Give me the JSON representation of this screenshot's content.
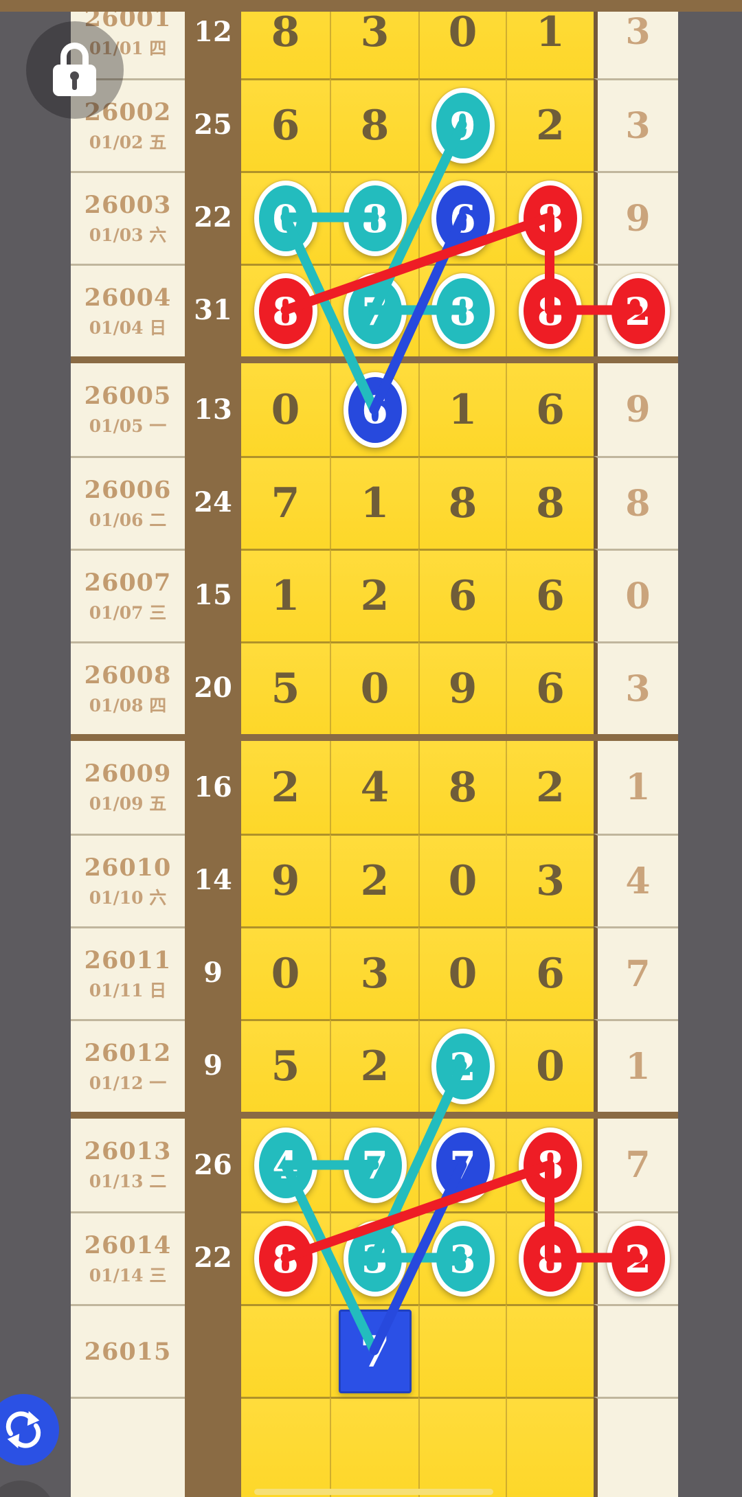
{
  "colors": {
    "teal": "#23bcbe",
    "blue": "#2749dd",
    "red": "#ee1d25",
    "yellow": "#fdd729",
    "brown": "#8a6b44",
    "cream": "#f7f2e0",
    "background": "#5d5b5f",
    "grid_digit": "#6f5d39",
    "tail_digit": "#caa47c",
    "period_text": "#c29b6f",
    "sum_text": "#ffffff"
  },
  "icons": {
    "lock": "lock-icon",
    "refresh": "refresh-icon"
  },
  "table": {
    "rows": [
      {
        "period": "26001",
        "date": "01/01 四",
        "sum": "12",
        "d": [
          "8",
          "3",
          "0",
          "1"
        ],
        "t": "3",
        "marks": [
          null,
          null,
          null,
          null
        ],
        "tmark": null
      },
      {
        "period": "26002",
        "date": "01/02 五",
        "sum": "25",
        "d": [
          "6",
          "8",
          "9",
          "2"
        ],
        "t": "3",
        "marks": [
          null,
          null,
          "teal",
          null
        ],
        "tmark": null
      },
      {
        "period": "26003",
        "date": "01/03 六",
        "sum": "22",
        "d": [
          "0",
          "8",
          "6",
          "8"
        ],
        "t": "9",
        "marks": [
          "teal",
          "teal",
          "blue",
          "red"
        ],
        "tmark": null
      },
      {
        "period": "26004",
        "date": "01/04 日",
        "sum": "31",
        "d": [
          "8",
          "7",
          "8",
          "8"
        ],
        "t": "2",
        "marks": [
          "red",
          "teal",
          "teal",
          "red"
        ],
        "tmark": "red"
      },
      {
        "period": "26005",
        "date": "01/05 一",
        "sum": "13",
        "d": [
          "0",
          "6",
          "1",
          "6"
        ],
        "t": "9",
        "marks": [
          null,
          "blue",
          null,
          null
        ],
        "tmark": null
      },
      {
        "period": "26006",
        "date": "01/06 二",
        "sum": "24",
        "d": [
          "7",
          "1",
          "8",
          "8"
        ],
        "t": "8",
        "marks": [
          null,
          null,
          null,
          null
        ],
        "tmark": null
      },
      {
        "period": "26007",
        "date": "01/07 三",
        "sum": "15",
        "d": [
          "1",
          "2",
          "6",
          "6"
        ],
        "t": "0",
        "marks": [
          null,
          null,
          null,
          null
        ],
        "tmark": null
      },
      {
        "period": "26008",
        "date": "01/08 四",
        "sum": "20",
        "d": [
          "5",
          "0",
          "9",
          "6"
        ],
        "t": "3",
        "marks": [
          null,
          null,
          null,
          null
        ],
        "tmark": null
      },
      {
        "period": "26009",
        "date": "01/09 五",
        "sum": "16",
        "d": [
          "2",
          "4",
          "8",
          "2"
        ],
        "t": "1",
        "marks": [
          null,
          null,
          null,
          null
        ],
        "tmark": null
      },
      {
        "period": "26010",
        "date": "01/10 六",
        "sum": "14",
        "d": [
          "9",
          "2",
          "0",
          "3"
        ],
        "t": "4",
        "marks": [
          null,
          null,
          null,
          null
        ],
        "tmark": null
      },
      {
        "period": "26011",
        "date": "01/11 日",
        "sum": "9",
        "d": [
          "0",
          "3",
          "0",
          "6"
        ],
        "t": "7",
        "marks": [
          null,
          null,
          null,
          null
        ],
        "tmark": null
      },
      {
        "period": "26012",
        "date": "01/12 一",
        "sum": "9",
        "d": [
          "5",
          "2",
          "2",
          "0"
        ],
        "t": "1",
        "marks": [
          null,
          null,
          "teal",
          null
        ],
        "tmark": null
      },
      {
        "period": "26013",
        "date": "01/13 二",
        "sum": "26",
        "d": [
          "4",
          "7",
          "7",
          "8"
        ],
        "t": "7",
        "marks": [
          "teal",
          "teal",
          "blue",
          "red"
        ],
        "tmark": null
      },
      {
        "period": "26014",
        "date": "01/14 三",
        "sum": "22",
        "d": [
          "8",
          "3",
          "3",
          "8"
        ],
        "t": "2",
        "marks": [
          "red",
          "teal",
          "teal",
          "red"
        ],
        "tmark": "red"
      },
      {
        "period": "26015",
        "date": "",
        "sum": "",
        "d": [
          "",
          "7",
          "",
          ""
        ],
        "t": "",
        "marks": [
          null,
          "square",
          null,
          null
        ],
        "tmark": null
      },
      {
        "period": "",
        "date": "",
        "sum": "",
        "d": [
          "",
          "",
          "",
          ""
        ],
        "t": "",
        "marks": [
          null,
          null,
          null,
          null
        ],
        "tmark": null
      }
    ],
    "connections": [
      {
        "color": "teal",
        "from": [
          2,
          3
        ],
        "to": [
          4,
          2
        ]
      },
      {
        "color": "teal",
        "from": [
          3,
          1
        ],
        "to": [
          3,
          2
        ]
      },
      {
        "color": "teal",
        "from": [
          3,
          1
        ],
        "to": [
          5,
          2
        ]
      },
      {
        "color": "teal",
        "from": [
          4,
          2
        ],
        "to": [
          4,
          3
        ]
      },
      {
        "color": "blue",
        "from": [
          3,
          3
        ],
        "to": [
          5,
          2
        ]
      },
      {
        "color": "red",
        "from": [
          3,
          4
        ],
        "to": [
          4,
          1
        ]
      },
      {
        "color": "red",
        "from": [
          3,
          4
        ],
        "to": [
          4,
          4
        ]
      },
      {
        "color": "red",
        "from": [
          4,
          4
        ],
        "to": [
          4,
          5
        ]
      },
      {
        "color": "teal",
        "from": [
          12,
          3
        ],
        "to": [
          14,
          2
        ]
      },
      {
        "color": "teal",
        "from": [
          13,
          1
        ],
        "to": [
          13,
          2
        ]
      },
      {
        "color": "teal",
        "from": [
          13,
          1
        ],
        "to": [
          15,
          2
        ]
      },
      {
        "color": "teal",
        "from": [
          14,
          2
        ],
        "to": [
          14,
          3
        ]
      },
      {
        "color": "blue",
        "from": [
          13,
          3
        ],
        "to": [
          15,
          2
        ]
      },
      {
        "color": "red",
        "from": [
          13,
          4
        ],
        "to": [
          14,
          1
        ]
      },
      {
        "color": "red",
        "from": [
          13,
          4
        ],
        "to": [
          14,
          4
        ]
      },
      {
        "color": "red",
        "from": [
          14,
          4
        ],
        "to": [
          14,
          5
        ]
      }
    ]
  }
}
